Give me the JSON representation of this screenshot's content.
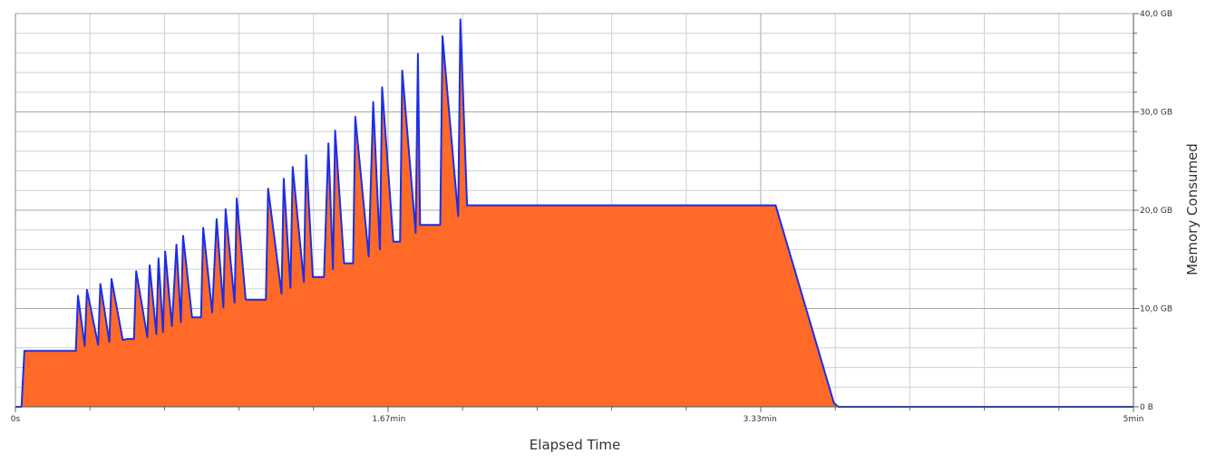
{
  "chart_data": {
    "type": "area",
    "xlabel": "Elapsed Time",
    "ylabel": "Memory Consumed",
    "x_unit": "min",
    "y_unit": "GB",
    "xlim": [
      0,
      5
    ],
    "ylim": [
      0,
      40
    ],
    "x_ticks": [
      {
        "value": 0,
        "label": "0s"
      },
      {
        "value": 1.67,
        "label": "1.67min"
      },
      {
        "value": 3.33,
        "label": "3.33min"
      },
      {
        "value": 5,
        "label": "5min"
      }
    ],
    "y_ticks": [
      {
        "value": 0,
        "label": "0 B"
      },
      {
        "value": 10,
        "label": "10,0 GB"
      },
      {
        "value": 20,
        "label": "20,0 GB"
      },
      {
        "value": 30,
        "label": "30,0 GB"
      },
      {
        "value": 40,
        "label": "40,0 GB"
      }
    ],
    "grid": true,
    "y_axis_side": "right",
    "colors": {
      "fill": "#ff6a28",
      "outline": "#1a2ee8",
      "grid": "#cfcfcf",
      "grid_major": "#a8a8a8"
    },
    "series": [
      {
        "x": [
          0,
          0.027,
          0.04,
          0.27,
          0.28,
          0.31,
          0.32,
          0.37,
          0.38,
          0.42,
          0.43,
          0.48,
          0.5,
          0.53,
          0.54,
          0.59,
          0.6,
          0.63,
          0.64,
          0.66,
          0.67,
          0.7,
          0.72,
          0.74,
          0.75,
          0.79,
          0.8,
          0.83,
          0.84,
          0.88,
          0.9,
          0.93,
          0.94,
          0.98,
          0.99,
          1.03,
          1.04,
          1.12,
          1.13,
          1.19,
          1.2,
          1.23,
          1.24,
          1.29,
          1.3,
          1.33,
          1.34,
          1.38,
          1.4,
          1.42,
          1.43,
          1.47,
          1.49,
          1.51,
          1.52,
          1.58,
          1.6,
          1.63,
          1.64,
          1.69,
          1.7,
          1.72,
          1.73,
          1.79,
          1.8,
          1.81,
          1.82,
          1.9,
          1.91,
          1.98,
          1.99,
          2.02,
          2.03,
          2.08,
          2.09,
          2.13,
          2.14,
          2.18,
          2.19,
          2.28,
          2.29,
          2.34,
          2.35,
          2.41,
          2.42,
          2.46,
          2.47,
          2.57,
          2.58,
          2.62,
          2.63,
          2.69,
          2.7,
          2.77,
          2.78,
          2.82,
          2.83,
          2.9,
          2.91,
          2.94,
          2.95,
          3.01,
          3.03,
          3.07,
          3.08,
          3.14,
          3.16,
          3.2,
          3.21,
          3.28,
          3.3,
          3.38,
          3.4,
          3.66,
          3.68,
          5
        ]
      },
      {
        "y": [
          0,
          0,
          5.7,
          5.7,
          11.3,
          6.2,
          11.9,
          6.3,
          12.5,
          6.6,
          13.0,
          6.8,
          6.9,
          6.9,
          13.8,
          7.1,
          14.4,
          7.4,
          15.1,
          7.6,
          15.8,
          8.2,
          16.5,
          8.6,
          17.4,
          9.1,
          9.1,
          9.1,
          18.2,
          9.6,
          19.1,
          10.1,
          20.1,
          10.6,
          21.2,
          10.9,
          10.9,
          10.9,
          22.2,
          11.5,
          23.2,
          12.1,
          24.4,
          12.7,
          25.6,
          13.2,
          13.2,
          13.2,
          26.8,
          14.0,
          28.1,
          14.6,
          14.6,
          14.6,
          29.5,
          15.3,
          31.0,
          16.0,
          32.5,
          16.8,
          16.8,
          16.8,
          34.2,
          17.7,
          35.9,
          18.5,
          18.5,
          18.5,
          37.7,
          19.4,
          39.4,
          20.5,
          20.5,
          20.5,
          20.5,
          20.5,
          20.5,
          20.5,
          20.5,
          20.5,
          20.5,
          20.5,
          20.5,
          20.5,
          20.5,
          20.5,
          20.5,
          20.5,
          20.5,
          20.5,
          20.5,
          20.5,
          20.5,
          20.5,
          20.5,
          20.5,
          20.5,
          20.5,
          20.5,
          20.5,
          20.5,
          20.5,
          20.5,
          20.5,
          20.5,
          20.5,
          20.5,
          20.5,
          20.5,
          20.5,
          20.5,
          20.5,
          20.5,
          0.4,
          0,
          0
        ]
      }
    ]
  }
}
